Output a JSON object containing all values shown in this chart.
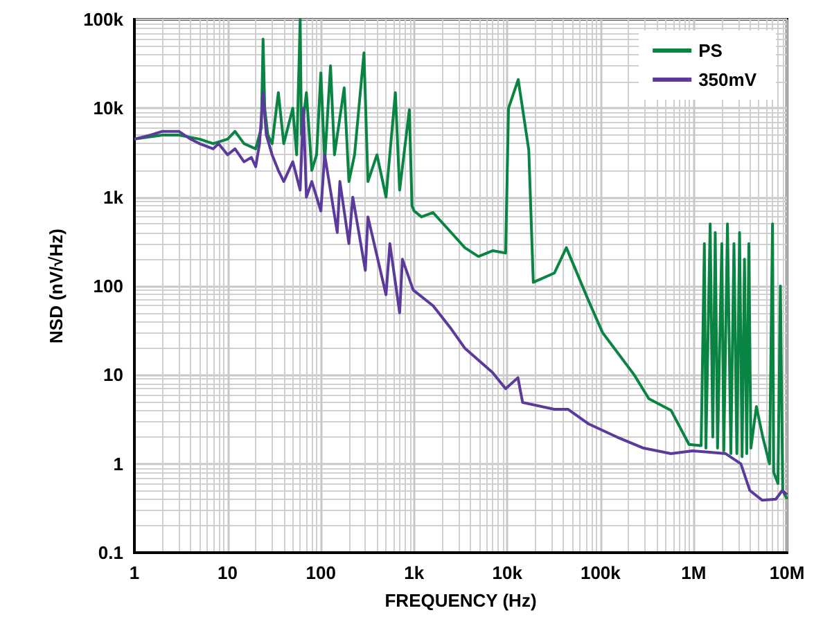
{
  "chart_data": {
    "type": "line",
    "xlabel": "FREQUENCY (Hz)",
    "ylabel": "NSD (nV/√Hz)",
    "log": "xy",
    "grid": true,
    "legend": "top right",
    "line_style": "solid",
    "marker": "none",
    "xlim": [
      1,
      10000000
    ],
    "xticks": [
      1,
      10,
      100,
      {
        "value": 1000,
        "label": "1k"
      },
      {
        "value": 10000,
        "label": "10k"
      },
      {
        "value": 100000,
        "label": "100k"
      },
      {
        "value": 1000000,
        "label": "1M"
      },
      {
        "value": 10000000,
        "label": "10M"
      }
    ],
    "ylim": [
      0.1,
      100000
    ],
    "yticks": [
      0.1,
      1,
      10,
      100,
      {
        "value": 1000,
        "label": "1k"
      },
      {
        "value": 10000,
        "label": "10k"
      },
      {
        "value": 100000,
        "label": "100k"
      }
    ],
    "series": [
      {
        "name": "PS",
        "color": "#0a8443",
        "x": [
          1,
          2,
          3,
          5,
          7,
          10,
          12,
          15,
          20,
          23,
          24,
          25,
          27,
          30,
          35,
          40,
          50,
          55,
          60,
          62,
          70,
          80,
          90,
          100,
          110,
          127,
          140,
          178,
          200,
          230,
          290,
          320,
          400,
          500,
          630,
          700,
          890,
          950,
          1000,
          1200,
          1600,
          2500,
          3500,
          4900,
          7000,
          9600,
          10300,
          13100,
          17000,
          19000,
          32000,
          43000,
          75000,
          105000,
          230000,
          330000,
          570000,
          890000,
          1200000,
          1300000,
          1350000,
          1500000,
          1600000,
          1700000,
          1800000,
          2000000,
          2100000,
          2300000,
          2500000,
          2700000,
          2900000,
          3100000,
          3300000,
          3500000,
          3700000,
          3900000,
          4100000,
          4700000,
          5500000,
          6500000,
          7000000,
          7200000,
          8000000,
          8500000,
          9000000,
          10000000
        ],
        "values": [
          4500,
          5000,
          5000,
          4500,
          4000,
          4500,
          5500,
          4000,
          3500,
          6000,
          60000,
          10000,
          5000,
          4000,
          15000,
          4000,
          10000,
          3000,
          100000,
          5000,
          15000,
          2000,
          3000,
          25000,
          2500,
          30000,
          3000,
          17000,
          1500,
          3000,
          42000,
          1500,
          3000,
          1000,
          15000,
          1200,
          9600,
          800,
          700,
          600,
          670,
          400,
          270,
          215,
          250,
          235,
          10000,
          21000,
          3400,
          110,
          140,
          270,
          67,
          30,
          10,
          5.4,
          4,
          1.65,
          1.6,
          300,
          1.5,
          500,
          2,
          400,
          1.5,
          300,
          1.4,
          500,
          1.3,
          300,
          1.3,
          400,
          1.2,
          200,
          1.3,
          300,
          1.5,
          4.4,
          2,
          1,
          500,
          0.8,
          0.6,
          100,
          0.5,
          0.4
        ]
      },
      {
        "name": "350mV",
        "color": "#5b3a9b",
        "x": [
          1,
          1.5,
          2,
          3,
          4,
          5,
          7,
          8,
          10,
          12,
          15,
          18,
          20,
          22,
          24,
          26,
          30,
          35,
          40,
          50,
          60,
          65,
          70,
          80,
          100,
          110,
          150,
          160,
          200,
          220,
          300,
          320,
          500,
          550,
          700,
          750,
          980,
          1600,
          2500,
          3500,
          6900,
          9600,
          13000,
          14600,
          32000,
          45000,
          75000,
          150000,
          290000,
          570000,
          970000,
          2200000,
          3200000,
          4000000,
          5400000,
          7600000,
          8900000,
          10000000
        ],
        "values": [
          4500,
          5000,
          5500,
          5500,
          4500,
          4000,
          3500,
          4000,
          3000,
          3500,
          2500,
          2800,
          2200,
          4000,
          15000,
          5000,
          3000,
          2000,
          1500,
          2500,
          1200,
          10000,
          1000,
          1500,
          700,
          3000,
          400,
          1500,
          300,
          1000,
          150,
          600,
          80,
          300,
          50,
          200,
          90,
          60,
          33,
          20,
          10.7,
          7,
          9.3,
          4.9,
          4.1,
          4.1,
          2.8,
          2,
          1.5,
          1.3,
          1.4,
          1.3,
          1,
          0.5,
          0.39,
          0.4,
          0.5,
          0.45
        ]
      }
    ]
  }
}
